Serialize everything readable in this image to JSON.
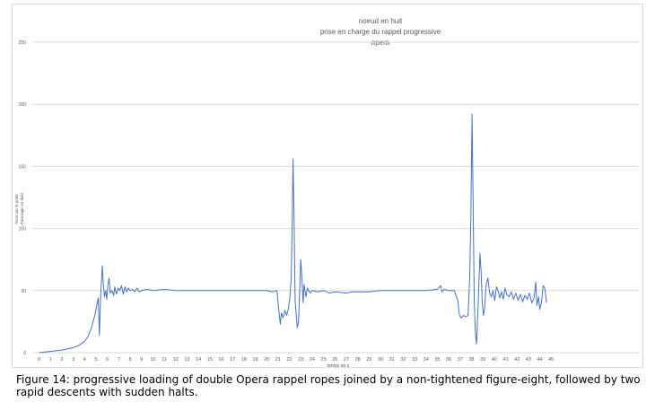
{
  "chart_data": {
    "type": "line",
    "title": [
      "noeud en huit",
      "prise en charge du rappel progressive",
      "opera"
    ],
    "xlabel": "temps en s",
    "ylabel": [
      "force sur le point",
      "d'ancrage en daN"
    ],
    "xlim": [
      0,
      46
    ],
    "ylim": [
      0,
      250
    ],
    "x_ticks": [
      0,
      1,
      2,
      3,
      4,
      5,
      6,
      7,
      8,
      9,
      10,
      11,
      12,
      13,
      14,
      15,
      16,
      17,
      18,
      19,
      20,
      21,
      22,
      23,
      24,
      25,
      26,
      27,
      28,
      29,
      30,
      31,
      32,
      33,
      34,
      35,
      36,
      37,
      38,
      39,
      40,
      41,
      42,
      43,
      44,
      45
    ],
    "y_ticks": [
      0,
      50,
      100,
      150,
      200,
      250
    ],
    "grid": "horizontal",
    "legend": "none",
    "series": [
      {
        "color": "#4472c4",
        "points": [
          [
            0,
            0
          ],
          [
            0.5,
            0.5
          ],
          [
            1,
            1
          ],
          [
            1.5,
            1.5
          ],
          [
            2,
            2
          ],
          [
            2.5,
            3
          ],
          [
            3,
            4
          ],
          [
            3.5,
            6
          ],
          [
            4,
            9
          ],
          [
            4.3,
            13
          ],
          [
            4.6,
            20
          ],
          [
            4.9,
            30
          ],
          [
            5.1,
            40
          ],
          [
            5.2,
            44
          ],
          [
            5.3,
            14
          ],
          [
            5.4,
            45
          ],
          [
            5.5,
            60
          ],
          [
            5.55,
            70
          ],
          [
            5.65,
            55
          ],
          [
            5.75,
            45
          ],
          [
            5.85,
            50
          ],
          [
            5.95,
            43
          ],
          [
            6.05,
            55
          ],
          [
            6.15,
            60
          ],
          [
            6.25,
            48
          ],
          [
            6.4,
            50
          ],
          [
            6.55,
            46
          ],
          [
            6.65,
            53
          ],
          [
            6.8,
            47
          ],
          [
            6.95,
            52
          ],
          [
            7.1,
            50
          ],
          [
            7.25,
            54
          ],
          [
            7.4,
            47
          ],
          [
            7.55,
            53
          ],
          [
            7.7,
            49
          ],
          [
            7.85,
            52
          ],
          [
            8,
            50
          ],
          [
            8.2,
            51
          ],
          [
            8.4,
            49
          ],
          [
            8.6,
            52
          ],
          [
            8.8,
            49
          ],
          [
            9,
            50
          ],
          [
            9.5,
            51
          ],
          [
            10,
            50
          ],
          [
            11,
            51
          ],
          [
            12,
            50
          ],
          [
            13,
            50
          ],
          [
            14,
            50
          ],
          [
            15,
            50
          ],
          [
            16,
            50
          ],
          [
            17,
            50
          ],
          [
            18,
            50
          ],
          [
            19,
            50
          ],
          [
            20,
            50
          ],
          [
            20.5,
            49
          ],
          [
            20.9,
            50
          ],
          [
            21.05,
            36
          ],
          [
            21.2,
            23
          ],
          [
            21.3,
            32
          ],
          [
            21.45,
            28
          ],
          [
            21.6,
            34
          ],
          [
            21.75,
            30
          ],
          [
            21.9,
            35
          ],
          [
            22.05,
            45
          ],
          [
            22.15,
            60
          ],
          [
            22.25,
            105
          ],
          [
            22.32,
            156
          ],
          [
            22.4,
            115
          ],
          [
            22.5,
            42
          ],
          [
            22.6,
            30
          ],
          [
            22.7,
            20
          ],
          [
            22.8,
            25
          ],
          [
            22.9,
            50
          ],
          [
            23.0,
            75
          ],
          [
            23.1,
            60
          ],
          [
            23.2,
            40
          ],
          [
            23.3,
            55
          ],
          [
            23.45,
            45
          ],
          [
            23.6,
            52
          ],
          [
            23.8,
            48
          ],
          [
            24,
            50
          ],
          [
            24.5,
            49
          ],
          [
            25,
            50
          ],
          [
            25.5,
            48
          ],
          [
            26,
            49
          ],
          [
            27,
            48
          ],
          [
            27.5,
            49
          ],
          [
            28,
            49
          ],
          [
            29,
            49
          ],
          [
            30,
            50
          ],
          [
            31,
            50
          ],
          [
            32,
            50
          ],
          [
            33,
            50
          ],
          [
            34,
            50
          ],
          [
            35,
            51
          ],
          [
            35.3,
            54
          ],
          [
            35.4,
            49
          ],
          [
            35.6,
            51
          ],
          [
            36,
            50
          ],
          [
            36.5,
            50
          ],
          [
            36.8,
            42
          ],
          [
            36.95,
            30
          ],
          [
            37.1,
            28
          ],
          [
            37.3,
            30
          ],
          [
            37.5,
            29
          ],
          [
            37.7,
            30
          ],
          [
            37.85,
            60
          ],
          [
            37.95,
            110
          ],
          [
            38.05,
            192
          ],
          [
            38.15,
            120
          ],
          [
            38.25,
            40
          ],
          [
            38.35,
            15
          ],
          [
            38.45,
            7
          ],
          [
            38.6,
            40
          ],
          [
            38.75,
            80
          ],
          [
            38.85,
            65
          ],
          [
            38.95,
            40
          ],
          [
            39.05,
            30
          ],
          [
            39.15,
            35
          ],
          [
            39.3,
            55
          ],
          [
            39.45,
            60
          ],
          [
            39.6,
            48
          ],
          [
            39.75,
            45
          ],
          [
            39.9,
            50
          ],
          [
            40.05,
            42
          ],
          [
            40.2,
            53
          ],
          [
            40.35,
            50
          ],
          [
            40.5,
            44
          ],
          [
            40.65,
            49
          ],
          [
            40.8,
            43
          ],
          [
            40.95,
            52
          ],
          [
            41.1,
            47
          ],
          [
            41.3,
            45
          ],
          [
            41.5,
            49
          ],
          [
            41.7,
            43
          ],
          [
            41.9,
            48
          ],
          [
            42.1,
            42
          ],
          [
            42.3,
            47
          ],
          [
            42.5,
            41
          ],
          [
            42.7,
            46
          ],
          [
            42.9,
            43
          ],
          [
            43.1,
            48
          ],
          [
            43.3,
            40
          ],
          [
            43.5,
            44
          ],
          [
            43.65,
            57
          ],
          [
            43.75,
            38
          ],
          [
            43.9,
            45
          ],
          [
            44.0,
            35
          ],
          [
            44.15,
            40
          ],
          [
            44.3,
            54
          ],
          [
            44.45,
            52
          ],
          [
            44.6,
            40
          ]
        ]
      }
    ]
  },
  "caption": {
    "line1": "Figure 14: progressive loading of double Opera rappel ropes joined by a non-tightened figure-eight, followed by two",
    "line2": "rapid descents with sudden halts."
  }
}
